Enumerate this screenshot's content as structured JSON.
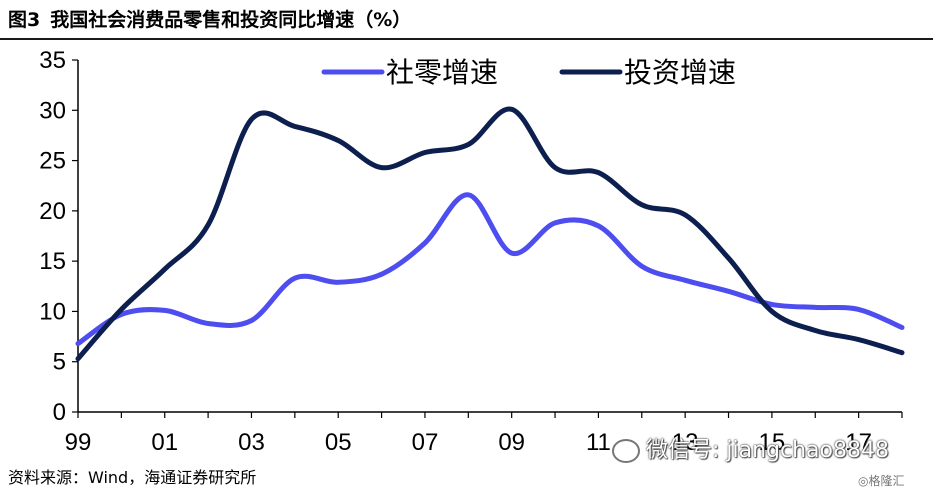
{
  "header": {
    "figure_label": "图3",
    "title": "我国社会消费品零售和投资同比增速（%）"
  },
  "chart_data": {
    "type": "line",
    "x": [
      1999,
      2000,
      2001,
      2002,
      2003,
      2004,
      2005,
      2006,
      2007,
      2008,
      2009,
      2010,
      2011,
      2012,
      2013,
      2014,
      2015,
      2016,
      2017,
      2018
    ],
    "x_tick_labels": [
      "99",
      "01",
      "03",
      "05",
      "07",
      "09",
      "11",
      "13",
      "15",
      "17"
    ],
    "y_tick_labels": [
      "0",
      "5",
      "10",
      "15",
      "20",
      "25",
      "30",
      "35"
    ],
    "ylim": [
      0,
      35
    ],
    "grid": false,
    "legend_position": "top",
    "series": [
      {
        "name": "社零增速",
        "color": "#4d4df0",
        "values": [
          6.8,
          9.7,
          10.1,
          8.8,
          9.1,
          13.3,
          12.9,
          13.7,
          16.8,
          21.6,
          15.8,
          18.8,
          18.5,
          14.5,
          13.1,
          12.0,
          10.7,
          10.4,
          10.2,
          8.4
        ]
      },
      {
        "name": "投资增速",
        "color": "#0c1f4f",
        "values": [
          5.3,
          10.2,
          14.2,
          18.6,
          29.1,
          28.4,
          27.0,
          24.3,
          25.8,
          26.6,
          30.1,
          24.3,
          23.8,
          20.6,
          19.6,
          15.3,
          10.0,
          8.1,
          7.2,
          5.9
        ]
      }
    ]
  },
  "footer": {
    "source": "资料来源：Wind，海通证券研究所",
    "watermark": "微信号: jiangchao8848",
    "corner_mark": "◎格隆汇"
  }
}
